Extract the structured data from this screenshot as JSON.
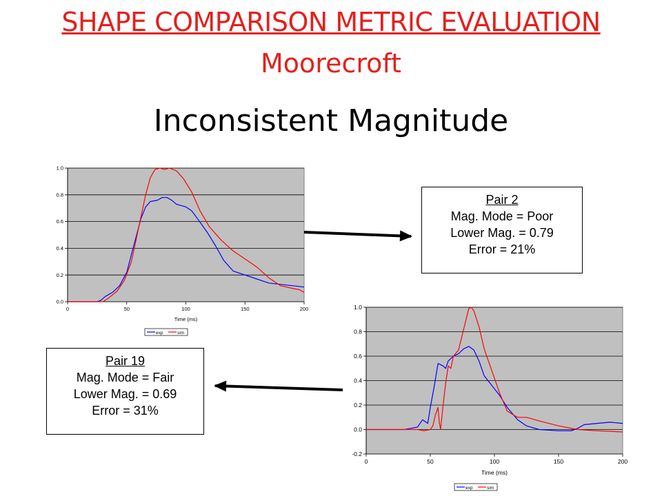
{
  "slide": {
    "title": "SHAPE COMPARISON METRIC EVALUATION",
    "subtitle": "Moorecroft",
    "heading": "Inconsistent Magnitude"
  },
  "box1": {
    "header": "Pair 2",
    "line1": "Mag. Mode = Poor",
    "line2": "Lower Mag. = 0.79",
    "line3": "Error = 21%"
  },
  "box2": {
    "header": "Pair 19",
    "line1": "Mag. Mode = Fair",
    "line2": "Lower Mag. = 0.69",
    "line3": "Error = 31%"
  },
  "colors": {
    "title": "#e4201c",
    "exp": "#0000ff",
    "sim": "#ff0000",
    "plot_bg": "#c0c0c0"
  },
  "chart_data": [
    {
      "type": "line",
      "xlabel": "Time (ms)",
      "xlim": [
        0,
        200
      ],
      "ylim": [
        0,
        1.0
      ],
      "xticks": [
        0,
        50,
        100,
        150,
        200
      ],
      "yticks": [
        0.0,
        0.2,
        0.4,
        0.6,
        0.8,
        1.0
      ],
      "grid": true,
      "legend": "bottom-center",
      "series": [
        {
          "name": "exp",
          "color": "#0000ff",
          "points": [
            [
              0,
              0
            ],
            [
              25,
              0
            ],
            [
              28,
              0.01
            ],
            [
              32,
              0.04
            ],
            [
              38,
              0.07
            ],
            [
              44,
              0.12
            ],
            [
              50,
              0.22
            ],
            [
              56,
              0.42
            ],
            [
              62,
              0.62
            ],
            [
              66,
              0.71
            ],
            [
              70,
              0.75
            ],
            [
              76,
              0.76
            ],
            [
              80,
              0.78
            ],
            [
              84,
              0.78
            ],
            [
              88,
              0.76
            ],
            [
              92,
              0.73
            ],
            [
              100,
              0.71
            ],
            [
              105,
              0.68
            ],
            [
              110,
              0.62
            ],
            [
              118,
              0.52
            ],
            [
              125,
              0.42
            ],
            [
              132,
              0.31
            ],
            [
              140,
              0.23
            ],
            [
              150,
              0.2
            ],
            [
              160,
              0.17
            ],
            [
              170,
              0.14
            ],
            [
              180,
              0.13
            ],
            [
              190,
              0.12
            ],
            [
              200,
              0.11
            ]
          ]
        },
        {
          "name": "sim",
          "color": "#ff0000",
          "points": [
            [
              0,
              0
            ],
            [
              30,
              0
            ],
            [
              35,
              0.03
            ],
            [
              42,
              0.08
            ],
            [
              48,
              0.16
            ],
            [
              54,
              0.3
            ],
            [
              60,
              0.55
            ],
            [
              66,
              0.8
            ],
            [
              70,
              0.93
            ],
            [
              74,
              0.99
            ],
            [
              78,
              1.0
            ],
            [
              82,
              0.99
            ],
            [
              86,
              1.0
            ],
            [
              92,
              0.98
            ],
            [
              98,
              0.92
            ],
            [
              105,
              0.82
            ],
            [
              112,
              0.68
            ],
            [
              120,
              0.56
            ],
            [
              130,
              0.46
            ],
            [
              140,
              0.38
            ],
            [
              150,
              0.32
            ],
            [
              160,
              0.26
            ],
            [
              170,
              0.18
            ],
            [
              180,
              0.12
            ],
            [
              190,
              0.1
            ],
            [
              196,
              0.09
            ],
            [
              200,
              0.07
            ]
          ]
        }
      ]
    },
    {
      "type": "line",
      "xlabel": "Time (ms)",
      "xlim": [
        0,
        200
      ],
      "ylim": [
        -0.2,
        1.0
      ],
      "xticks": [
        0,
        50,
        100,
        150,
        200
      ],
      "yticks": [
        -0.2,
        0.0,
        0.2,
        0.4,
        0.6,
        0.8,
        1.0
      ],
      "grid": true,
      "legend": "bottom-center",
      "series": [
        {
          "name": "exp",
          "color": "#0000ff",
          "points": [
            [
              0,
              0
            ],
            [
              30,
              0
            ],
            [
              35,
              0.01
            ],
            [
              40,
              0.02
            ],
            [
              44,
              0.08
            ],
            [
              48,
              0.05
            ],
            [
              50,
              0.18
            ],
            [
              53,
              0.35
            ],
            [
              56,
              0.54
            ],
            [
              60,
              0.52
            ],
            [
              62,
              0.5
            ],
            [
              64,
              0.56
            ],
            [
              68,
              0.6
            ],
            [
              72,
              0.62
            ],
            [
              76,
              0.66
            ],
            [
              80,
              0.68
            ],
            [
              84,
              0.65
            ],
            [
              88,
              0.56
            ],
            [
              92,
              0.44
            ],
            [
              98,
              0.36
            ],
            [
              104,
              0.28
            ],
            [
              110,
              0.18
            ],
            [
              118,
              0.08
            ],
            [
              125,
              0.03
            ],
            [
              135,
              0.0
            ],
            [
              150,
              -0.01
            ],
            [
              160,
              -0.01
            ],
            [
              165,
              0.01
            ],
            [
              170,
              0.04
            ],
            [
              180,
              0.05
            ],
            [
              190,
              0.06
            ],
            [
              200,
              0.05
            ]
          ]
        },
        {
          "name": "sim",
          "color": "#ff0000",
          "points": [
            [
              0,
              0
            ],
            [
              40,
              0
            ],
            [
              45,
              -0.01
            ],
            [
              50,
              0.0
            ],
            [
              52,
              0.03
            ],
            [
              54,
              0.12
            ],
            [
              56,
              0.18
            ],
            [
              57,
              0.06
            ],
            [
              58,
              0.0
            ],
            [
              60,
              0.2
            ],
            [
              62,
              0.38
            ],
            [
              64,
              0.52
            ],
            [
              66,
              0.5
            ],
            [
              68,
              0.6
            ],
            [
              72,
              0.65
            ],
            [
              76,
              0.82
            ],
            [
              80,
              0.99
            ],
            [
              82,
              1.0
            ],
            [
              84,
              0.97
            ],
            [
              88,
              0.84
            ],
            [
              92,
              0.66
            ],
            [
              98,
              0.48
            ],
            [
              104,
              0.3
            ],
            [
              110,
              0.15
            ],
            [
              118,
              0.1
            ],
            [
              125,
              0.1
            ],
            [
              135,
              0.07
            ],
            [
              150,
              0.03
            ],
            [
              165,
              0.0
            ],
            [
              180,
              -0.01
            ],
            [
              200,
              -0.02
            ]
          ]
        }
      ]
    }
  ]
}
